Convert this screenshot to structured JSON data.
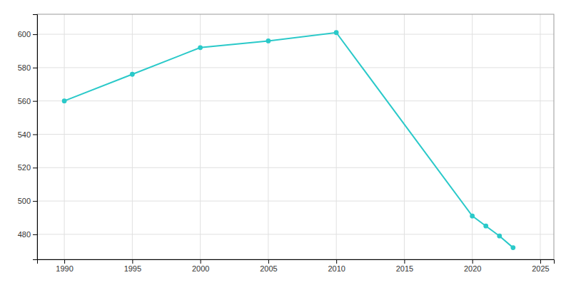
{
  "chart_data": {
    "type": "line",
    "x": [
      1990,
      1995,
      2000,
      2005,
      2010,
      2020,
      2021,
      2022,
      2023
    ],
    "values": [
      560,
      576,
      592,
      596,
      601,
      491,
      485,
      479,
      472
    ],
    "color": "#2ac9c9",
    "marker": "circle",
    "xlim": [
      1988,
      2026
    ],
    "ylim": [
      465,
      612
    ],
    "xticks": [
      1990,
      1995,
      2000,
      2005,
      2010,
      2015,
      2020,
      2025
    ],
    "yticks": [
      480,
      500,
      520,
      540,
      560,
      580,
      600
    ],
    "grid": true
  }
}
